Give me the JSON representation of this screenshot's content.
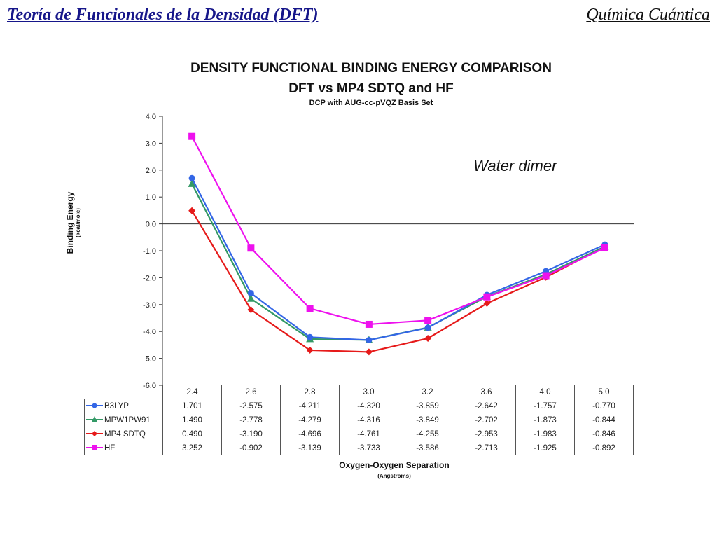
{
  "header": {
    "left": "Teoría de Funcionales de la Densidad (DFT)",
    "right": "Química Cuántica"
  },
  "chart_data": {
    "type": "line",
    "title": "DENSITY FUNCTIONAL BINDING ENERGY COMPARISON",
    "subtitle": "DFT vs MP4 SDTQ and HF",
    "subtitle2": "DCP with AUG-cc-pVQZ Basis Set",
    "ylabel": "Binding Energy",
    "ylabel_units": "(kcal/mole)",
    "xlabel": "Oxygen-Oxygen Separation",
    "xlabel_units": "(Angstroms)",
    "annotation": "Water dimer",
    "ylim": [
      -6.0,
      4.0
    ],
    "yticks": [
      "4.0",
      "3.0",
      "2.0",
      "1.0",
      "0.0",
      "-1.0",
      "-2.0",
      "-3.0",
      "-4.0",
      "-5.0",
      "-6.0"
    ],
    "categories": [
      "2.4",
      "2.6",
      "2.8",
      "3.0",
      "3.2",
      "3.6",
      "4.0",
      "5.0"
    ],
    "legend_position": "data-table",
    "series": [
      {
        "name": "B3LYP",
        "color": "#3366e6",
        "marker": "circle",
        "values": [
          1.701,
          -2.575,
          -4.211,
          -4.32,
          -3.859,
          -2.642,
          -1.757,
          -0.77
        ],
        "labels": [
          "1.701",
          "-2.575",
          "-4.211",
          "-4.320",
          "-3.859",
          "-2.642",
          "-1.757",
          "-0.770"
        ]
      },
      {
        "name": "MPW1PW91",
        "color": "#339966",
        "marker": "triangle",
        "values": [
          1.49,
          -2.778,
          -4.279,
          -4.316,
          -3.849,
          -2.702,
          -1.873,
          -0.844
        ],
        "labels": [
          "1.490",
          "-2.778",
          "-4.279",
          "-4.316",
          "-3.849",
          "-2.702",
          "-1.873",
          "-0.844"
        ]
      },
      {
        "name": "MP4 SDTQ",
        "color": "#e61a1a",
        "marker": "diamond",
        "values": [
          0.49,
          -3.19,
          -4.696,
          -4.761,
          -4.255,
          -2.953,
          -1.983,
          -0.846
        ],
        "labels": [
          "0.490",
          "-3.190",
          "-4.696",
          "-4.761",
          "-4.255",
          "-2.953",
          "-1.983",
          "-0.846"
        ]
      },
      {
        "name": "HF",
        "color": "#ee11ee",
        "marker": "square",
        "values": [
          3.252,
          -0.902,
          -3.139,
          -3.733,
          -3.586,
          -2.713,
          -1.925,
          -0.892
        ],
        "labels": [
          "3.252",
          "-0.902",
          "-3.139",
          "-3.733",
          "-3.586",
          "-2.713",
          "-1.925",
          "-0.892"
        ]
      }
    ]
  }
}
